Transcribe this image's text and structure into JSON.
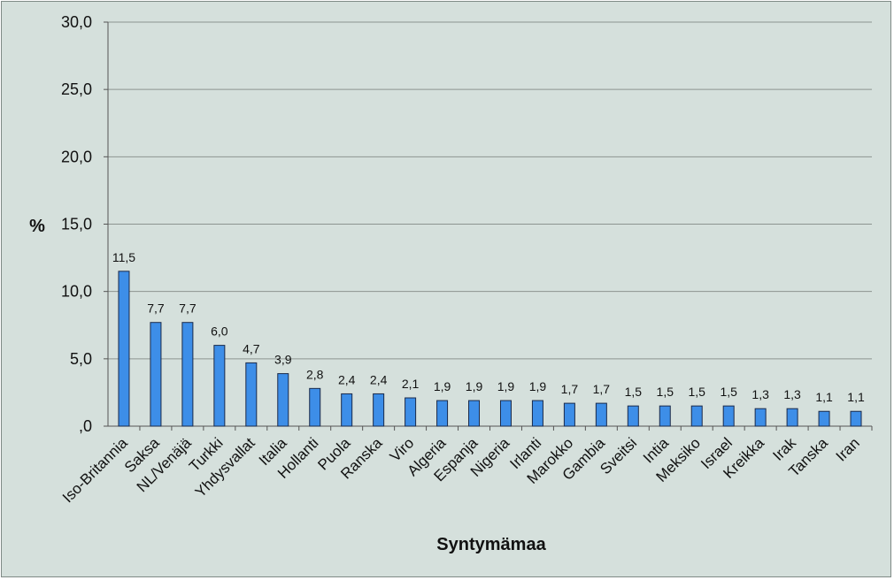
{
  "chart_data": {
    "type": "bar",
    "title": "",
    "xlabel": "Syntymämaa",
    "ylabel": "%",
    "ylim": [
      0,
      30
    ],
    "yticks": [
      "30,0",
      "25,0",
      "20,0",
      "15,0",
      "10,0",
      "5,0",
      ",0"
    ],
    "ytick_values": [
      30,
      25,
      20,
      15,
      10,
      5,
      0
    ],
    "grid": true,
    "legend": "none",
    "bar_color": "#3d8ee8",
    "bar_edge_color": "#1a2a4a",
    "background_color": "#d5e0dc",
    "categories": [
      "Iso-Britannia",
      "Saksa",
      "NL/Venäjä",
      "Turkki",
      "Yhdysvallat",
      "Italia",
      "Hollanti",
      "Puola",
      "Ranska",
      "Viro",
      "Algeria",
      "Espanja",
      "Nigeria",
      "Irlanti",
      "Marokko",
      "Gambia",
      "Sveitsi",
      "Intia",
      "Meksiko",
      "Israel",
      "Kreikka",
      "Irak",
      "Tanska",
      "Iran"
    ],
    "values": [
      11.5,
      7.7,
      7.7,
      6.0,
      4.7,
      3.9,
      2.8,
      2.4,
      2.4,
      2.1,
      1.9,
      1.9,
      1.9,
      1.9,
      1.7,
      1.7,
      1.5,
      1.5,
      1.5,
      1.5,
      1.3,
      1.3,
      1.1,
      1.1
    ],
    "value_labels": [
      "11,5",
      "7,7",
      "7,7",
      "6,0",
      "4,7",
      "3,9",
      "2,8",
      "2,4",
      "2,4",
      "2,1",
      "1,9",
      "1,9",
      "1,9",
      "1,9",
      "1,7",
      "1,7",
      "1,5",
      "1,5",
      "1,5",
      "1,5",
      "1,3",
      "1,3",
      "1,1",
      "1,1"
    ]
  }
}
